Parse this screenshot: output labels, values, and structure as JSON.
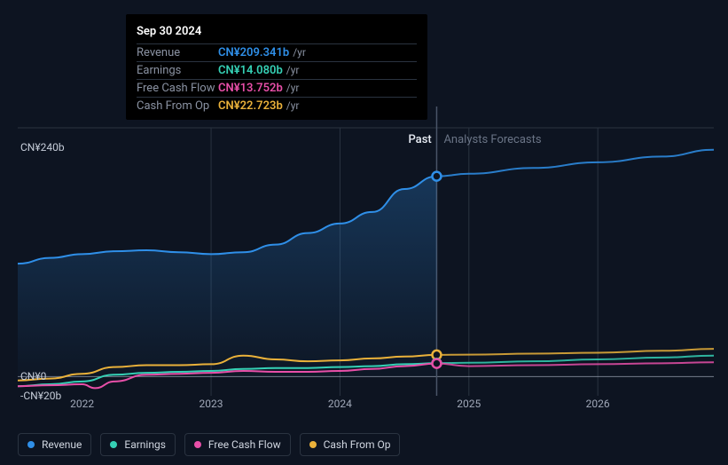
{
  "chart": {
    "type": "area-line",
    "background_color": "#0d1421",
    "grid_color": "#2a3340",
    "axis_color": "#a0a8b8",
    "label_fontsize": 12,
    "xlim": [
      2021.5,
      2026.9
    ],
    "ylim": [
      -20,
      260
    ],
    "yticks": [
      {
        "v": 240,
        "label": "CN¥240b"
      },
      {
        "v": 0,
        "label": "CN¥0"
      },
      {
        "v": -20,
        "label": "-CN¥20b"
      }
    ],
    "xticks": [
      {
        "v": 2022,
        "label": "2022"
      },
      {
        "v": 2023,
        "label": "2023"
      },
      {
        "v": 2024,
        "label": "2024"
      },
      {
        "v": 2025,
        "label": "2025"
      },
      {
        "v": 2026,
        "label": "2026"
      }
    ],
    "vgrid": [
      2023,
      2024,
      2025,
      2026
    ],
    "divider_x": 2024.75,
    "past_label": "Past",
    "forecast_label": "Analysts Forecasts",
    "series": [
      {
        "key": "revenue",
        "name": "Revenue",
        "color": "#2f8fe8",
        "fill": true,
        "fill_top": "rgba(47,143,232,0.28)",
        "fill_bottom": "rgba(47,143,232,0.02)",
        "past": [
          [
            2021.5,
            118
          ],
          [
            2021.75,
            124
          ],
          [
            2022.0,
            128
          ],
          [
            2022.25,
            131
          ],
          [
            2022.5,
            132
          ],
          [
            2022.75,
            130
          ],
          [
            2023.0,
            128
          ],
          [
            2023.25,
            130
          ],
          [
            2023.5,
            138
          ],
          [
            2023.75,
            150
          ],
          [
            2024.0,
            160
          ],
          [
            2024.25,
            172
          ],
          [
            2024.5,
            196
          ],
          [
            2024.75,
            209.341
          ]
        ],
        "forecast": [
          [
            2024.75,
            209.341
          ],
          [
            2025.0,
            212
          ],
          [
            2025.5,
            218
          ],
          [
            2026.0,
            224
          ],
          [
            2026.5,
            230
          ],
          [
            2026.9,
            237
          ]
        ],
        "marker_value": 209.341
      },
      {
        "key": "cashop",
        "name": "Cash From Op",
        "color": "#eab13a",
        "fill": false,
        "past": [
          [
            2021.5,
            -4
          ],
          [
            2021.75,
            -2
          ],
          [
            2022.0,
            3
          ],
          [
            2022.25,
            10
          ],
          [
            2022.5,
            12
          ],
          [
            2022.75,
            12
          ],
          [
            2023.0,
            13
          ],
          [
            2023.25,
            22
          ],
          [
            2023.5,
            18
          ],
          [
            2023.75,
            16
          ],
          [
            2024.0,
            17
          ],
          [
            2024.25,
            19
          ],
          [
            2024.5,
            21
          ],
          [
            2024.75,
            22.723
          ]
        ],
        "forecast": [
          [
            2024.75,
            22.723
          ],
          [
            2025.0,
            23
          ],
          [
            2025.5,
            24
          ],
          [
            2026.0,
            25
          ],
          [
            2026.5,
            27
          ],
          [
            2026.9,
            29
          ]
        ],
        "marker_value": 22.723
      },
      {
        "key": "earnings",
        "name": "Earnings",
        "color": "#35d0b5",
        "fill": false,
        "past": [
          [
            2021.5,
            -10
          ],
          [
            2021.75,
            -8
          ],
          [
            2022.0,
            -5
          ],
          [
            2022.25,
            2
          ],
          [
            2022.5,
            4
          ],
          [
            2022.75,
            5
          ],
          [
            2023.0,
            6
          ],
          [
            2023.25,
            8
          ],
          [
            2023.5,
            9
          ],
          [
            2023.75,
            9
          ],
          [
            2024.0,
            10
          ],
          [
            2024.25,
            11
          ],
          [
            2024.5,
            13
          ],
          [
            2024.75,
            14.08
          ]
        ],
        "forecast": [
          [
            2024.75,
            14.08
          ],
          [
            2025.0,
            14.5
          ],
          [
            2025.5,
            16
          ],
          [
            2026.0,
            18
          ],
          [
            2026.5,
            20
          ],
          [
            2026.9,
            22
          ]
        ],
        "marker_value": 14.08
      },
      {
        "key": "fcf",
        "name": "Free Cash Flow",
        "color": "#e84fa8",
        "fill": false,
        "past": [
          [
            2021.5,
            -10
          ],
          [
            2021.75,
            -9
          ],
          [
            2022.0,
            -8
          ],
          [
            2022.1,
            -12
          ],
          [
            2022.25,
            -5
          ],
          [
            2022.5,
            2
          ],
          [
            2022.75,
            3
          ],
          [
            2023.0,
            4
          ],
          [
            2023.25,
            6
          ],
          [
            2023.5,
            5
          ],
          [
            2023.75,
            5
          ],
          [
            2024.0,
            6
          ],
          [
            2024.25,
            8
          ],
          [
            2024.5,
            11
          ],
          [
            2024.75,
            13.752
          ]
        ],
        "forecast": [
          [
            2024.75,
            13.752
          ],
          [
            2025.0,
            11
          ],
          [
            2025.5,
            12
          ],
          [
            2026.0,
            13
          ],
          [
            2026.5,
            14
          ],
          [
            2026.9,
            15
          ]
        ],
        "marker_value": 13.752
      }
    ],
    "legend": [
      {
        "label": "Revenue",
        "color": "#2f8fe8"
      },
      {
        "label": "Earnings",
        "color": "#35d0b5"
      },
      {
        "label": "Free Cash Flow",
        "color": "#e84fa8"
      },
      {
        "label": "Cash From Op",
        "color": "#eab13a"
      }
    ]
  },
  "tooltip": {
    "title": "Sep 30 2024",
    "unit": "/yr",
    "rows": [
      {
        "label": "Revenue",
        "value": "CN¥209.341b",
        "color": "#2f8fe8"
      },
      {
        "label": "Earnings",
        "value": "CN¥14.080b",
        "color": "#35d0b5"
      },
      {
        "label": "Free Cash Flow",
        "value": "CN¥13.752b",
        "color": "#e84fa8"
      },
      {
        "label": "Cash From Op",
        "value": "CN¥22.723b",
        "color": "#eab13a"
      }
    ]
  }
}
